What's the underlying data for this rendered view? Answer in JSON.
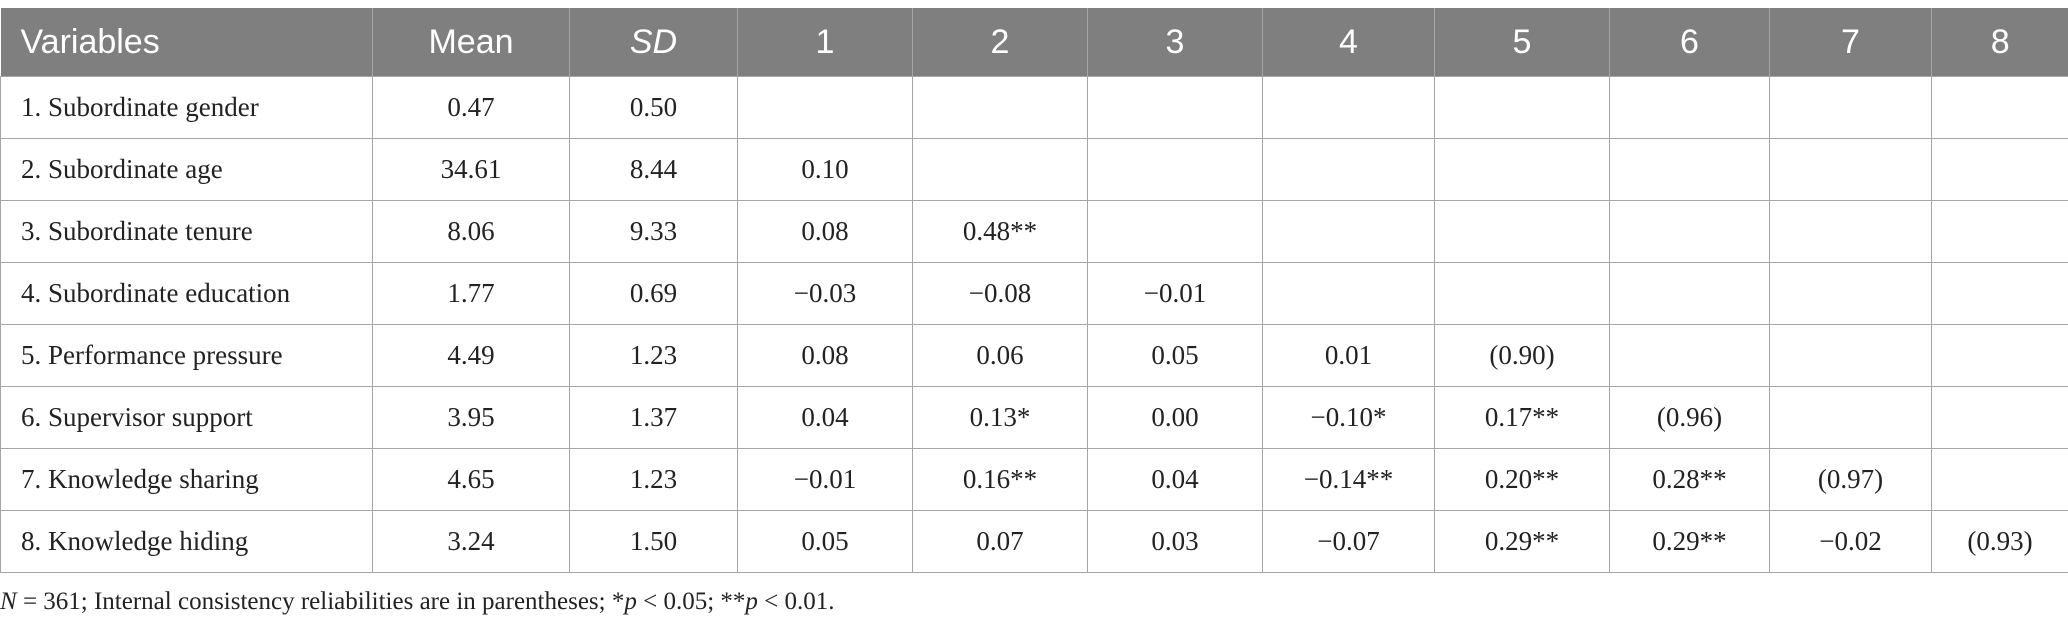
{
  "table": {
    "headers": [
      "Variables",
      "Mean",
      "SD",
      "1",
      "2",
      "3",
      "4",
      "5",
      "6",
      "7",
      "8"
    ],
    "rows": [
      [
        "1. Subordinate gender",
        "0.47",
        "0.50",
        "",
        "",
        "",
        "",
        "",
        "",
        "",
        ""
      ],
      [
        "2. Subordinate age",
        "34.61",
        "8.44",
        "0.10",
        "",
        "",
        "",
        "",
        "",
        "",
        ""
      ],
      [
        "3. Subordinate tenure",
        "8.06",
        "9.33",
        "0.08",
        "0.48**",
        "",
        "",
        "",
        "",
        "",
        ""
      ],
      [
        "4. Subordinate education",
        "1.77",
        "0.69",
        "−0.03",
        "−0.08",
        "−0.01",
        "",
        "",
        "",
        "",
        ""
      ],
      [
        "5. Performance pressure",
        "4.49",
        "1.23",
        "0.08",
        "0.06",
        "0.05",
        "0.01",
        "(0.90)",
        "",
        "",
        ""
      ],
      [
        "6. Supervisor support",
        "3.95",
        "1.37",
        "0.04",
        "0.13*",
        "0.00",
        "−0.10*",
        "0.17**",
        "(0.96)",
        "",
        ""
      ],
      [
        "7. Knowledge sharing",
        "4.65",
        "1.23",
        "−0.01",
        "0.16**",
        "0.04",
        "−0.14**",
        "0.20**",
        "0.28**",
        "(0.97)",
        ""
      ],
      [
        "8. Knowledge hiding",
        "3.24",
        "1.50",
        "0.05",
        "0.07",
        "0.03",
        "−0.07",
        "0.29**",
        "0.29**",
        "−0.02",
        "(0.93)"
      ]
    ]
  },
  "note": {
    "n_label": "N",
    "n_rest": " = 361; Internal consistency reliabilities are in parentheses; *",
    "p1_label": "p",
    "p1_rest": " < 0.05; **",
    "p2_label": "p",
    "p2_rest": " < 0.01."
  },
  "colors": {
    "header_bg": "#7f7f7f",
    "header_text": "#ffffff",
    "grid": "#a6a6a6"
  }
}
